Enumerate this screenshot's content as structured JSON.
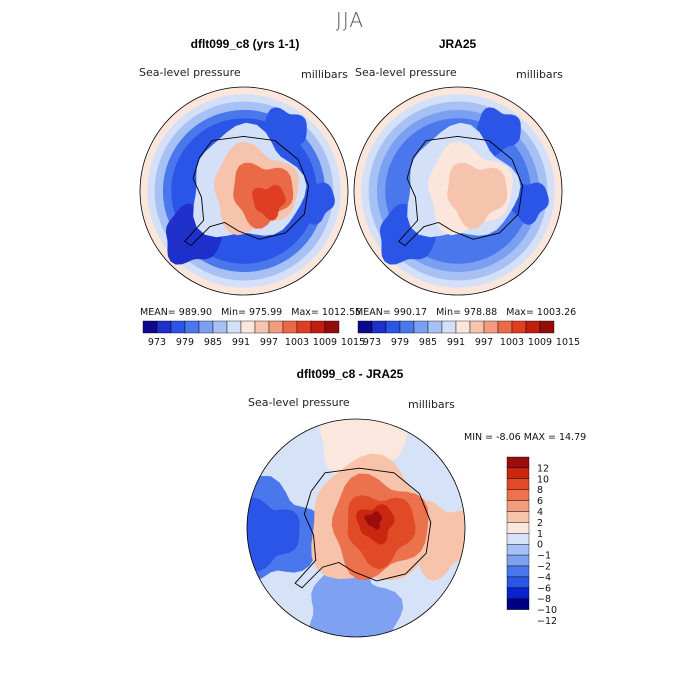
{
  "season": "JJA",
  "colors": {
    "abs_scale": [
      "#0a0a8a",
      "#1f2fc9",
      "#2a55e6",
      "#4a78ec",
      "#7b9ff1",
      "#a8c1f5",
      "#d3e0f8",
      "#fbe6dc",
      "#f6c3ad",
      "#f29b7d",
      "#ea6a47",
      "#df3e22",
      "#c21e10",
      "#940d0d"
    ],
    "diff_scale": [
      "#000085",
      "#0a22c8",
      "#2a55e6",
      "#4a78ec",
      "#7ea2f1",
      "#a8c1f5",
      "#d6e2f8",
      "#fbe7dd",
      "#f7c3ab",
      "#f29d7e",
      "#ec724e",
      "#e14a26",
      "#c92710",
      "#9a0d0d"
    ]
  },
  "chart_data": [
    {
      "type": "contour_map",
      "title": "dflt099_c8 (yrs 1-1)",
      "field_label": "Sea-level pressure",
      "units": "millibars",
      "stats": {
        "mean_label": "MEAN=",
        "mean": "989.90",
        "min_label": "Min=",
        "min": "975.99",
        "max_label": "Max=",
        "max": "1012.55"
      },
      "colorbar_ticks": [
        "973",
        "979",
        "985",
        "991",
        "997",
        "1003",
        "1009",
        "1015"
      ]
    },
    {
      "type": "contour_map",
      "title": "JRA25",
      "field_label": "Sea-level pressure",
      "units": "millibars",
      "stats": {
        "mean_label": "MEAN=",
        "mean": "990.17",
        "min_label": "Min=",
        "min": "978.88",
        "max_label": "Max=",
        "max": "1003.26"
      },
      "colorbar_ticks": [
        "973",
        "979",
        "985",
        "991",
        "997",
        "1003",
        "1009",
        "1015"
      ]
    },
    {
      "type": "contour_map",
      "title": "dflt099_c8 - JRA25",
      "field_label": "Sea-level pressure",
      "units": "millibars",
      "stats": {
        "min_label": "MIN =",
        "min": "-8.06",
        "max_label": "MAX =",
        "max": "14.79"
      },
      "colorbar_ticks": [
        "12",
        "10",
        "8",
        "6",
        "4",
        "2",
        "1",
        "0",
        "−1",
        "−2",
        "−4",
        "−6",
        "−8",
        "−10",
        "−12"
      ]
    }
  ]
}
